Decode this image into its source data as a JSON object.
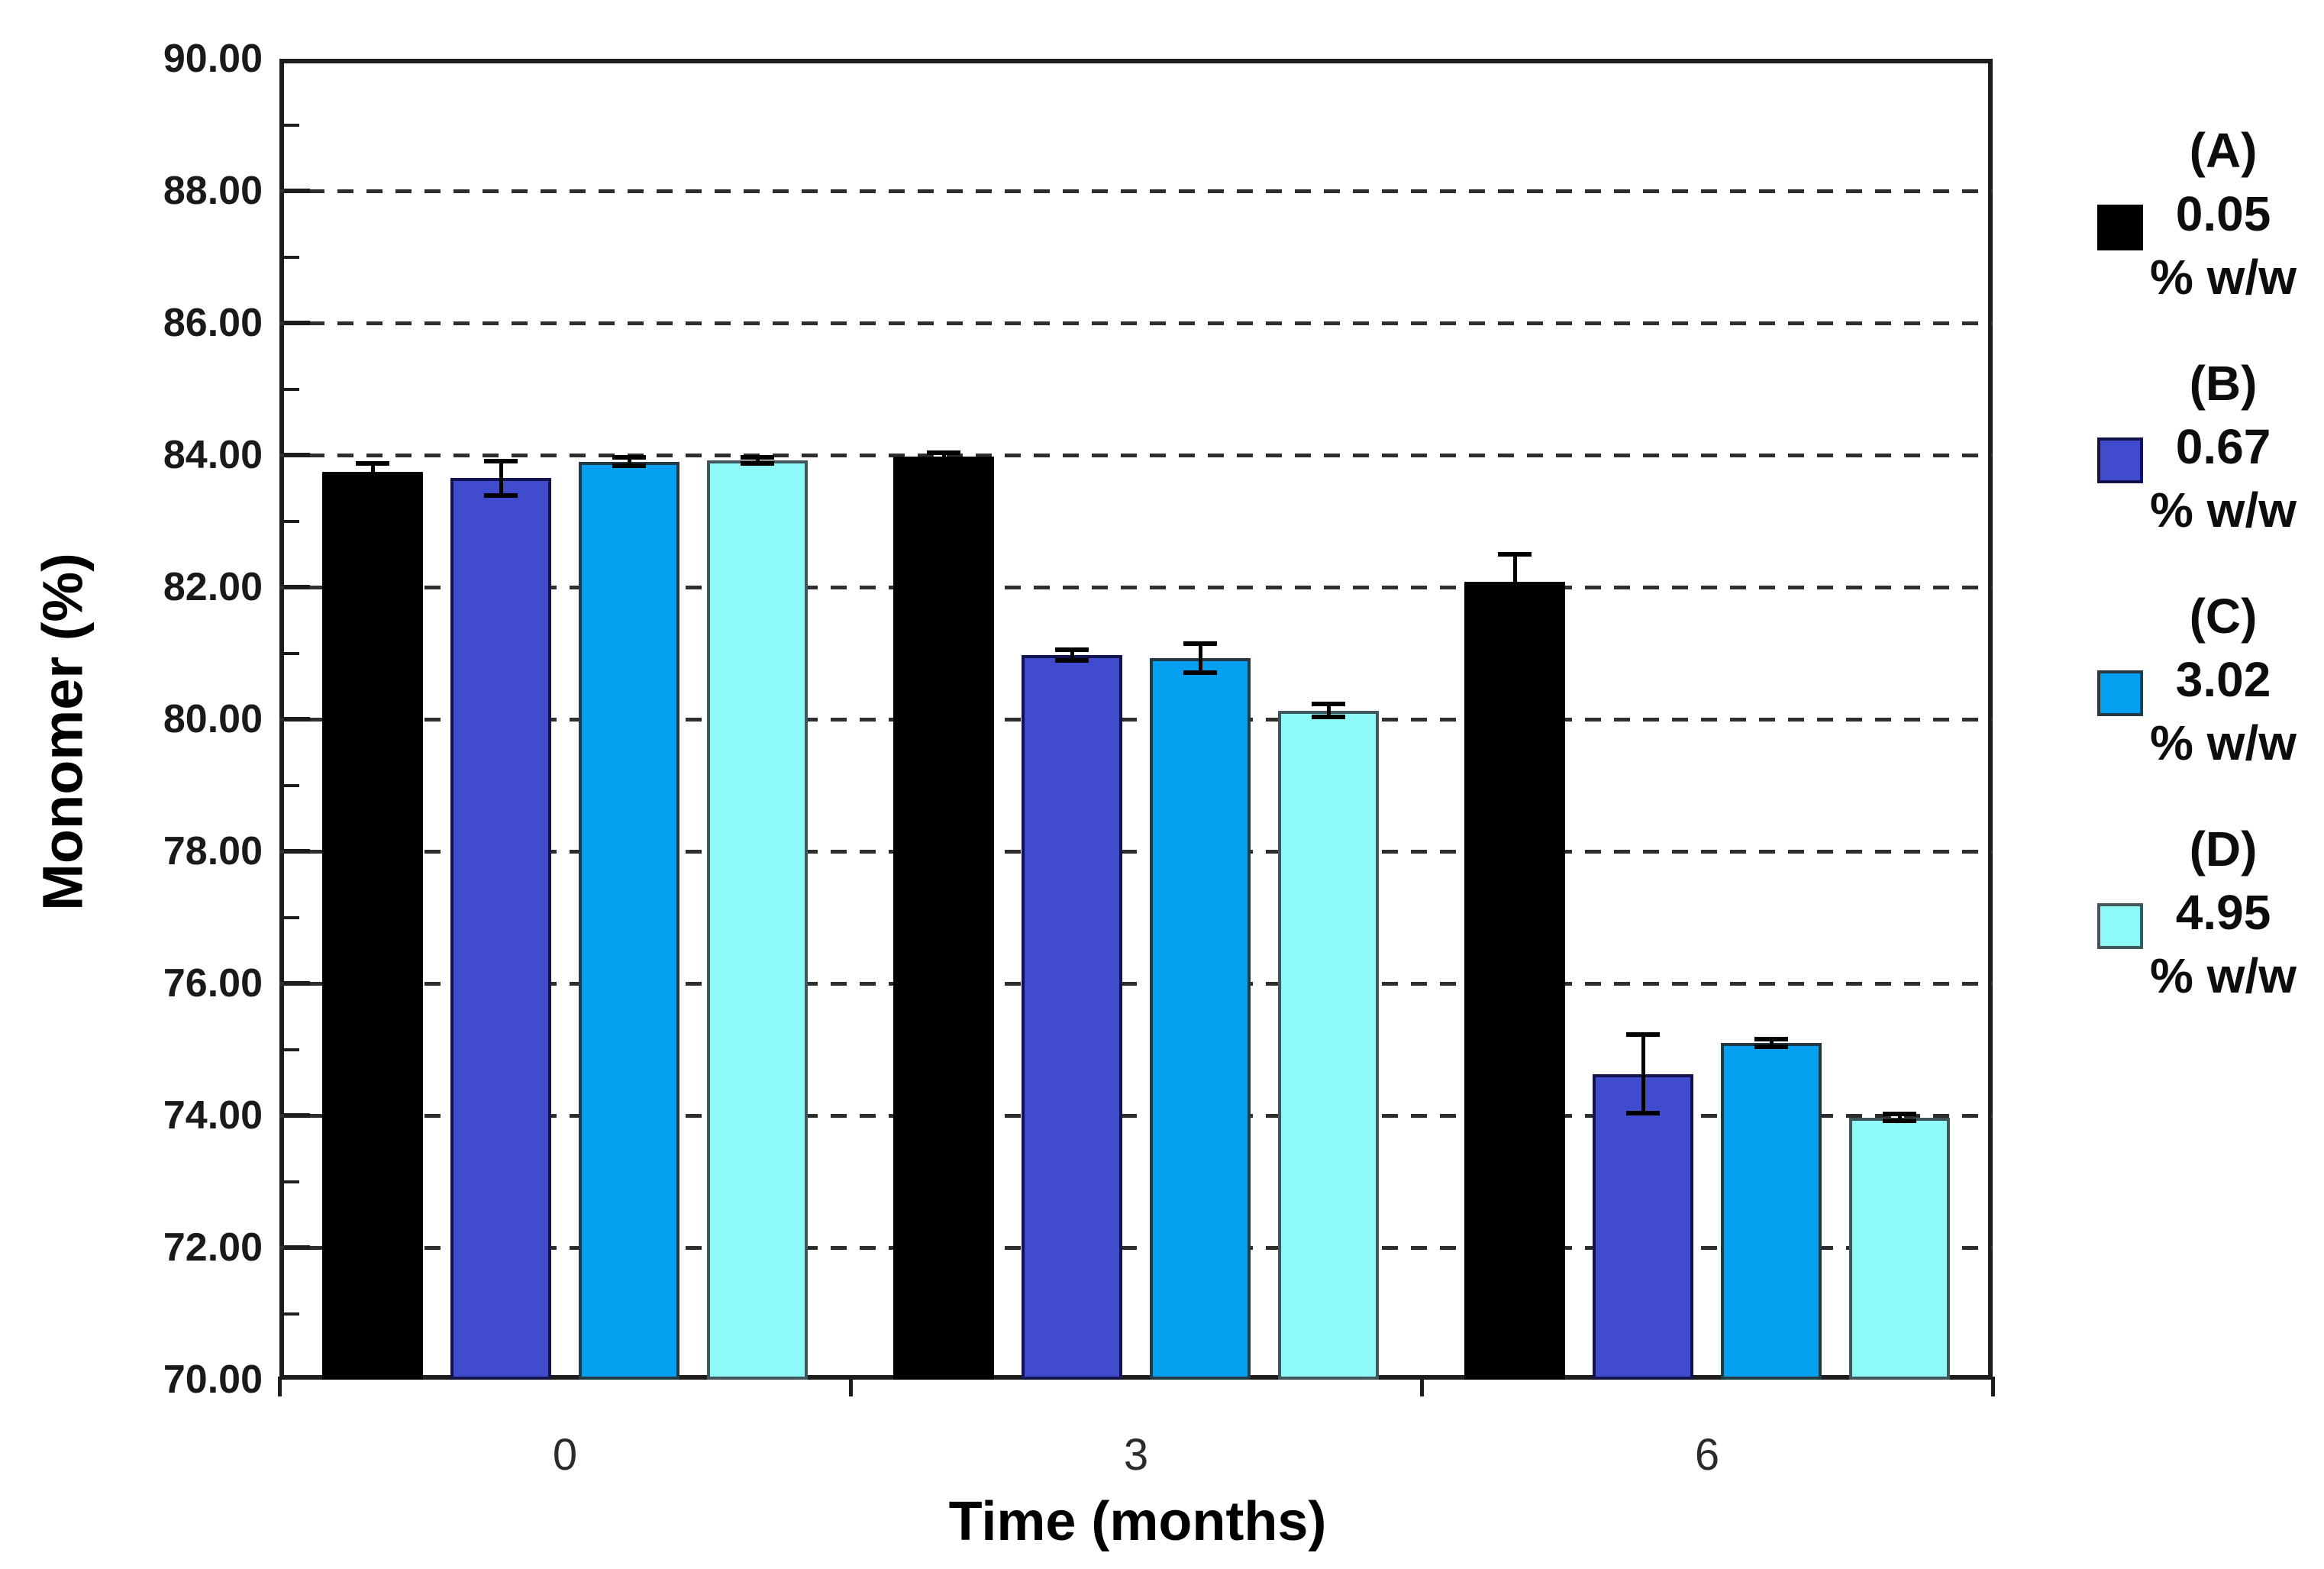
{
  "figure": {
    "background": "#ffffff",
    "axis_color": "#1c1c1c"
  },
  "chart_data": {
    "type": "bar",
    "title": "",
    "xlabel": "Time (months)",
    "ylabel": "Monomer (%)",
    "ylim": [
      70.0,
      90.0
    ],
    "ytick_step": 2.0,
    "ytick_labels": [
      "90.00",
      "88.00",
      "86.00",
      "84.00",
      "82.00",
      "80.00",
      "78.00",
      "76.00",
      "74.00",
      "72.00",
      "70.00"
    ],
    "minor_ytick_step": 1.0,
    "grid": "horizontal dashed at major ticks",
    "legend_position": "right",
    "categories": [
      "0",
      "3",
      "6"
    ],
    "series": [
      {
        "name": "(A) 0.05 % w/w",
        "legend_lines": [
          "(A)",
          "0.05",
          "% w/w"
        ],
        "color": "#000000",
        "border_color": "#000000",
        "values": [
          83.75,
          83.98,
          82.08
        ],
        "errors": [
          0.12,
          0.05,
          0.42
        ]
      },
      {
        "name": "(B) 0.67 % w/w",
        "legend_lines": [
          "(B)",
          "0.67",
          "% w/w"
        ],
        "color": "#414BCE",
        "border_color": "#12134f",
        "values": [
          83.65,
          80.97,
          74.63
        ],
        "errors": [
          0.26,
          0.08,
          0.6
        ]
      },
      {
        "name": "(C) 3.02 % w/w",
        "legend_lines": [
          "(C)",
          "3.02",
          "% w/w"
        ],
        "color": "#05A0EF",
        "border_color": "#233a42",
        "values": [
          83.9,
          80.93,
          75.1
        ],
        "errors": [
          0.06,
          0.22,
          0.06
        ]
      },
      {
        "name": "(D) 4.95 % w/w",
        "legend_lines": [
          "(D)",
          "4.95",
          "% w/w"
        ],
        "color": "#8EFAF8",
        "border_color": "#3f565c",
        "values": [
          83.92,
          80.13,
          73.97
        ],
        "errors": [
          0.05,
          0.1,
          0.05
        ]
      }
    ]
  }
}
